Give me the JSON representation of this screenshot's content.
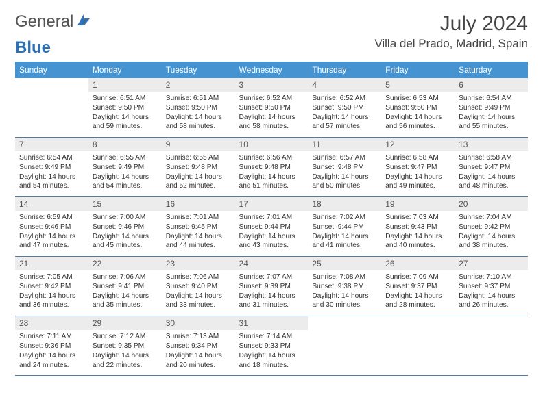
{
  "brand": {
    "word1": "General",
    "word2": "Blue"
  },
  "title": {
    "month": "July 2024",
    "location": "Villa del Prado, Madrid, Spain"
  },
  "colors": {
    "header_bg": "#4593d0",
    "row_divider": "#4a7aa8",
    "daynum_bg": "#ececec",
    "text": "#333333",
    "brand_blue": "#2a71b8"
  },
  "weekdays": [
    "Sunday",
    "Monday",
    "Tuesday",
    "Wednesday",
    "Thursday",
    "Friday",
    "Saturday"
  ],
  "weeks": [
    [
      null,
      {
        "n": "1",
        "sr": "6:51 AM",
        "ss": "9:50 PM",
        "dl": "14 hours and 59 minutes."
      },
      {
        "n": "2",
        "sr": "6:51 AM",
        "ss": "9:50 PM",
        "dl": "14 hours and 58 minutes."
      },
      {
        "n": "3",
        "sr": "6:52 AM",
        "ss": "9:50 PM",
        "dl": "14 hours and 58 minutes."
      },
      {
        "n": "4",
        "sr": "6:52 AM",
        "ss": "9:50 PM",
        "dl": "14 hours and 57 minutes."
      },
      {
        "n": "5",
        "sr": "6:53 AM",
        "ss": "9:50 PM",
        "dl": "14 hours and 56 minutes."
      },
      {
        "n": "6",
        "sr": "6:54 AM",
        "ss": "9:49 PM",
        "dl": "14 hours and 55 minutes."
      }
    ],
    [
      {
        "n": "7",
        "sr": "6:54 AM",
        "ss": "9:49 PM",
        "dl": "14 hours and 54 minutes."
      },
      {
        "n": "8",
        "sr": "6:55 AM",
        "ss": "9:49 PM",
        "dl": "14 hours and 54 minutes."
      },
      {
        "n": "9",
        "sr": "6:55 AM",
        "ss": "9:48 PM",
        "dl": "14 hours and 52 minutes."
      },
      {
        "n": "10",
        "sr": "6:56 AM",
        "ss": "9:48 PM",
        "dl": "14 hours and 51 minutes."
      },
      {
        "n": "11",
        "sr": "6:57 AM",
        "ss": "9:48 PM",
        "dl": "14 hours and 50 minutes."
      },
      {
        "n": "12",
        "sr": "6:58 AM",
        "ss": "9:47 PM",
        "dl": "14 hours and 49 minutes."
      },
      {
        "n": "13",
        "sr": "6:58 AM",
        "ss": "9:47 PM",
        "dl": "14 hours and 48 minutes."
      }
    ],
    [
      {
        "n": "14",
        "sr": "6:59 AM",
        "ss": "9:46 PM",
        "dl": "14 hours and 47 minutes."
      },
      {
        "n": "15",
        "sr": "7:00 AM",
        "ss": "9:46 PM",
        "dl": "14 hours and 45 minutes."
      },
      {
        "n": "16",
        "sr": "7:01 AM",
        "ss": "9:45 PM",
        "dl": "14 hours and 44 minutes."
      },
      {
        "n": "17",
        "sr": "7:01 AM",
        "ss": "9:44 PM",
        "dl": "14 hours and 43 minutes."
      },
      {
        "n": "18",
        "sr": "7:02 AM",
        "ss": "9:44 PM",
        "dl": "14 hours and 41 minutes."
      },
      {
        "n": "19",
        "sr": "7:03 AM",
        "ss": "9:43 PM",
        "dl": "14 hours and 40 minutes."
      },
      {
        "n": "20",
        "sr": "7:04 AM",
        "ss": "9:42 PM",
        "dl": "14 hours and 38 minutes."
      }
    ],
    [
      {
        "n": "21",
        "sr": "7:05 AM",
        "ss": "9:42 PM",
        "dl": "14 hours and 36 minutes."
      },
      {
        "n": "22",
        "sr": "7:06 AM",
        "ss": "9:41 PM",
        "dl": "14 hours and 35 minutes."
      },
      {
        "n": "23",
        "sr": "7:06 AM",
        "ss": "9:40 PM",
        "dl": "14 hours and 33 minutes."
      },
      {
        "n": "24",
        "sr": "7:07 AM",
        "ss": "9:39 PM",
        "dl": "14 hours and 31 minutes."
      },
      {
        "n": "25",
        "sr": "7:08 AM",
        "ss": "9:38 PM",
        "dl": "14 hours and 30 minutes."
      },
      {
        "n": "26",
        "sr": "7:09 AM",
        "ss": "9:37 PM",
        "dl": "14 hours and 28 minutes."
      },
      {
        "n": "27",
        "sr": "7:10 AM",
        "ss": "9:37 PM",
        "dl": "14 hours and 26 minutes."
      }
    ],
    [
      {
        "n": "28",
        "sr": "7:11 AM",
        "ss": "9:36 PM",
        "dl": "14 hours and 24 minutes."
      },
      {
        "n": "29",
        "sr": "7:12 AM",
        "ss": "9:35 PM",
        "dl": "14 hours and 22 minutes."
      },
      {
        "n": "30",
        "sr": "7:13 AM",
        "ss": "9:34 PM",
        "dl": "14 hours and 20 minutes."
      },
      {
        "n": "31",
        "sr": "7:14 AM",
        "ss": "9:33 PM",
        "dl": "14 hours and 18 minutes."
      },
      null,
      null,
      null
    ]
  ],
  "labels": {
    "sunrise": "Sunrise:",
    "sunset": "Sunset:",
    "daylight": "Daylight:"
  }
}
